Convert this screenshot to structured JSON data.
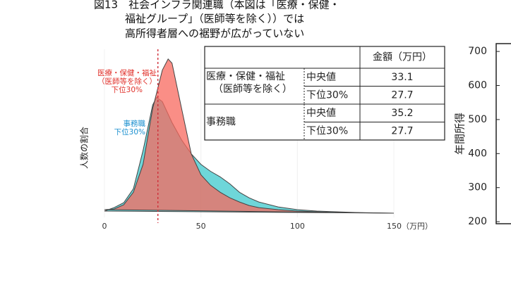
{
  "chart_data": [
    {
      "type": "area",
      "title": [
        "図13　社会インフラ関連職（本図は「医療・保健・",
        "福祉グループ」（医師等を除く））では",
        "高所得者層への裾野が広がっていない"
      ],
      "y_label": "人数の割合",
      "xlim": [
        0,
        150
      ],
      "ylim": [
        0,
        235
      ],
      "xticks": [
        0,
        50,
        100,
        {
          "value": 150,
          "label": "150（万円）"
        }
      ],
      "vline": 27.7,
      "series": [
        {
          "name": "事務職",
          "color": "#3ec8cc",
          "x": [
            0,
            5,
            10,
            15,
            20,
            25,
            27,
            30,
            35,
            40,
            45,
            50,
            55,
            60,
            65,
            70,
            75,
            80,
            90,
            100,
            110,
            120,
            130,
            150
          ],
          "values": [
            3,
            8,
            15,
            35,
            90,
            155,
            166,
            160,
            130,
            105,
            85,
            70,
            60,
            52,
            42,
            30,
            22,
            16,
            9,
            5,
            3,
            2,
            1,
            0
          ],
          "annotation": [
            "事務職",
            "下位30%"
          ]
        },
        {
          "name": "医療・保健・福祉（医師等を除く）",
          "color": "#f8685e",
          "x": [
            0,
            5,
            10,
            15,
            20,
            25,
            30,
            33,
            35,
            40,
            45,
            50,
            55,
            60,
            65,
            70,
            75,
            80,
            90,
            100,
            110,
            120,
            150
          ],
          "values": [
            5,
            6,
            12,
            30,
            70,
            150,
            205,
            221,
            215,
            150,
            85,
            55,
            40,
            30,
            22,
            16,
            11,
            8,
            5,
            3,
            2,
            1,
            0
          ],
          "annotation": [
            "医療・保健・福祉",
            "（医師等を除く）",
            "下位30%"
          ]
        }
      ],
      "table": {
        "header": "金額（万円）",
        "groups": [
          {
            "name": [
              "医療・保健・福祉",
              "（医師等を除く）"
            ],
            "rows": [
              {
                "label": "中央値",
                "value": 33.1
              },
              {
                "label": "下位30%",
                "value": 27.7
              }
            ]
          },
          {
            "name": [
              "事務職"
            ],
            "rows": [
              {
                "label": "中央値",
                "value": 35.2
              },
              {
                "label": "下位30%",
                "value": 27.7
              }
            ]
          }
        ]
      }
    },
    {
      "type": "frame",
      "y_label": "年間所得",
      "ylim": [
        194,
        723
      ],
      "yticks": [
        200,
        300,
        400,
        500,
        600,
        700
      ]
    }
  ]
}
